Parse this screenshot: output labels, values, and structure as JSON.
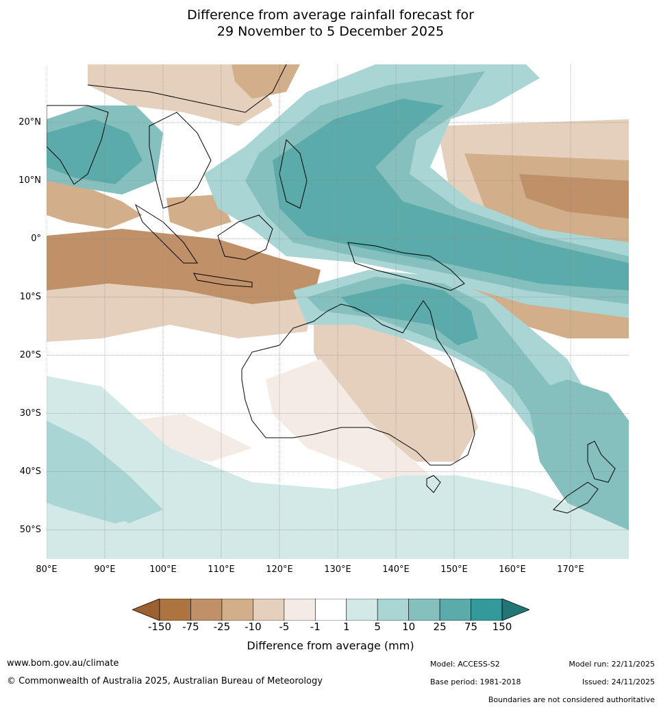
{
  "title": {
    "line1": "Difference from average rainfall forecast for",
    "line2": "29 November to 5 December 2025"
  },
  "map": {
    "lon_range": [
      80,
      180
    ],
    "lat_range": [
      -55,
      30
    ],
    "lat_ticks": [
      {
        "value": 20,
        "label": "20°N"
      },
      {
        "value": 10,
        "label": "10°N"
      },
      {
        "value": 0,
        "label": "0°"
      },
      {
        "value": -10,
        "label": "10°S"
      },
      {
        "value": -20,
        "label": "20°S"
      },
      {
        "value": -30,
        "label": "30°S"
      },
      {
        "value": -40,
        "label": "40°S"
      },
      {
        "value": -50,
        "label": "50°S"
      }
    ],
    "lon_ticks": [
      {
        "value": 80,
        "label": "80°E"
      },
      {
        "value": 90,
        "label": "90°E"
      },
      {
        "value": 100,
        "label": "100°E"
      },
      {
        "value": 110,
        "label": "110°E"
      },
      {
        "value": 120,
        "label": "120°E"
      },
      {
        "value": 130,
        "label": "130°E"
      },
      {
        "value": 140,
        "label": "140°E"
      },
      {
        "value": 150,
        "label": "150°E"
      },
      {
        "value": 160,
        "label": "160°E"
      },
      {
        "value": 170,
        "label": "170°E"
      }
    ],
    "colors": {
      "ocean": "#ffffff",
      "grid": "#888888",
      "coast": "#000000"
    }
  },
  "colorbar": {
    "title": "Difference from average (mm)",
    "labels": [
      "-150",
      "-75",
      "-25",
      "-10",
      "-5",
      "-1",
      "1",
      "5",
      "10",
      "25",
      "75",
      "150"
    ],
    "colors": [
      "#9c6130",
      "#ad7440",
      "#c09068",
      "#d2ae8a",
      "#e5d0bd",
      "#f4ebe4",
      "#ffffff",
      "#d3e9e8",
      "#a9d5d4",
      "#85c0bf",
      "#5aabaa",
      "#33999a",
      "#227676"
    ]
  },
  "footer": {
    "website": "www.bom.gov.au/climate",
    "copyright": "© Commonwealth of Australia 2025, Australian Bureau of Meteorology",
    "model": "Model: ACCESS-S2",
    "base_period": "Base period: 1981-2018",
    "model_run": "Model run: 22/11/2025",
    "issued": "Issued: 24/11/2025",
    "disclaimer": "Boundaries are not considered authoritative"
  }
}
